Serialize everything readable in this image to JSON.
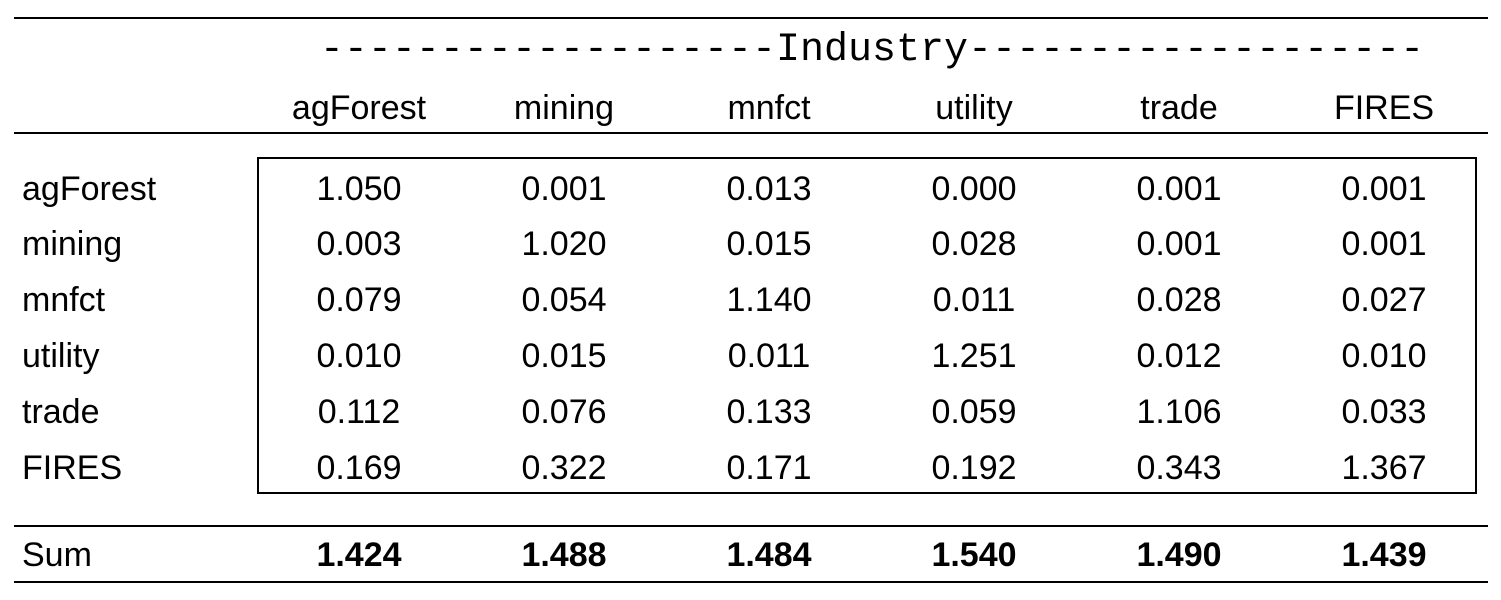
{
  "table": {
    "span_header": "-------------------Industry-------------------",
    "columns": [
      "agForest",
      "mining",
      "mnfct",
      "utility",
      "trade",
      "FIRES"
    ],
    "rows": [
      {
        "label": "agForest",
        "values": [
          "1.050",
          "0.001",
          "0.013",
          "0.000",
          "0.001",
          "0.001"
        ]
      },
      {
        "label": "mining",
        "values": [
          "0.003",
          "1.020",
          "0.015",
          "0.028",
          "0.001",
          "0.001"
        ]
      },
      {
        "label": "mnfct",
        "values": [
          "0.079",
          "0.054",
          "1.140",
          "0.011",
          "0.028",
          "0.027"
        ]
      },
      {
        "label": "utility",
        "values": [
          "0.010",
          "0.015",
          "0.011",
          "1.251",
          "0.012",
          "0.010"
        ]
      },
      {
        "label": "trade",
        "values": [
          "0.112",
          "0.076",
          "0.133",
          "0.059",
          "1.106",
          "0.033"
        ]
      },
      {
        "label": "FIRES",
        "values": [
          "0.169",
          "0.322",
          "0.171",
          "0.192",
          "0.343",
          "1.367"
        ]
      }
    ],
    "sum": {
      "label": "Sum",
      "values": [
        "1.424",
        "1.488",
        "1.484",
        "1.540",
        "1.490",
        "1.439"
      ]
    }
  }
}
